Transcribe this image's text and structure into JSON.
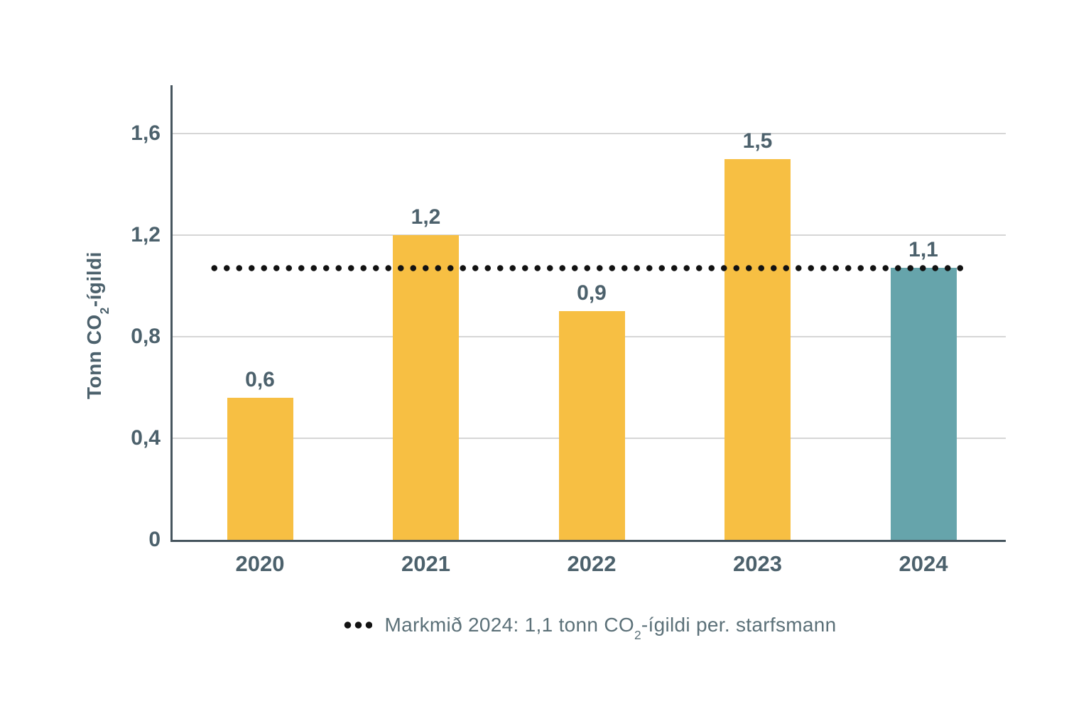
{
  "chart_data": {
    "type": "bar",
    "title": "",
    "categories": [
      "2020",
      "2021",
      "2022",
      "2023",
      "2024"
    ],
    "values": [
      0.6,
      1.2,
      0.9,
      1.5,
      1.1
    ],
    "value_labels": [
      "0,6",
      "1,2",
      "0,9",
      "1,5",
      "1,1"
    ],
    "bar_colors": [
      "#F7BF43",
      "#F7BF43",
      "#F7BF43",
      "#F7BF43",
      "#66A4AB"
    ],
    "bar_heights_rendered": [
      0.56,
      1.2,
      0.9,
      1.5,
      1.07
    ],
    "ylabel": {
      "pre": "Tonn CO",
      "sub": "2",
      "post": "-ígildi"
    },
    "xlabel": "",
    "yticks": [
      {
        "value": 0,
        "label": "0"
      },
      {
        "value": 0.4,
        "label": "0,4"
      },
      {
        "value": 0.8,
        "label": "0,8"
      },
      {
        "value": 1.2,
        "label": "1,2"
      },
      {
        "value": 1.6,
        "label": "1,6"
      }
    ],
    "ylim": [
      0,
      1.79
    ],
    "grid": "horizontal",
    "legend_position": "bottom-center",
    "target_line": {
      "value": 1.07,
      "style": "dotted",
      "color": "#121212",
      "legend_label": {
        "pre": "Markmið 2024: 1,1 tonn CO",
        "sub": "2",
        "post": "-ígildi per. starfsmann"
      }
    },
    "colors": {
      "bar_default": "#F7BF43",
      "bar_highlight": "#66A4AB",
      "axis": "#46555E",
      "grid": "#D6D6D6",
      "label_text": "#4C616C",
      "legend_text": "#5B7078",
      "dot": "#121212",
      "background": "#FFFFFF"
    }
  }
}
